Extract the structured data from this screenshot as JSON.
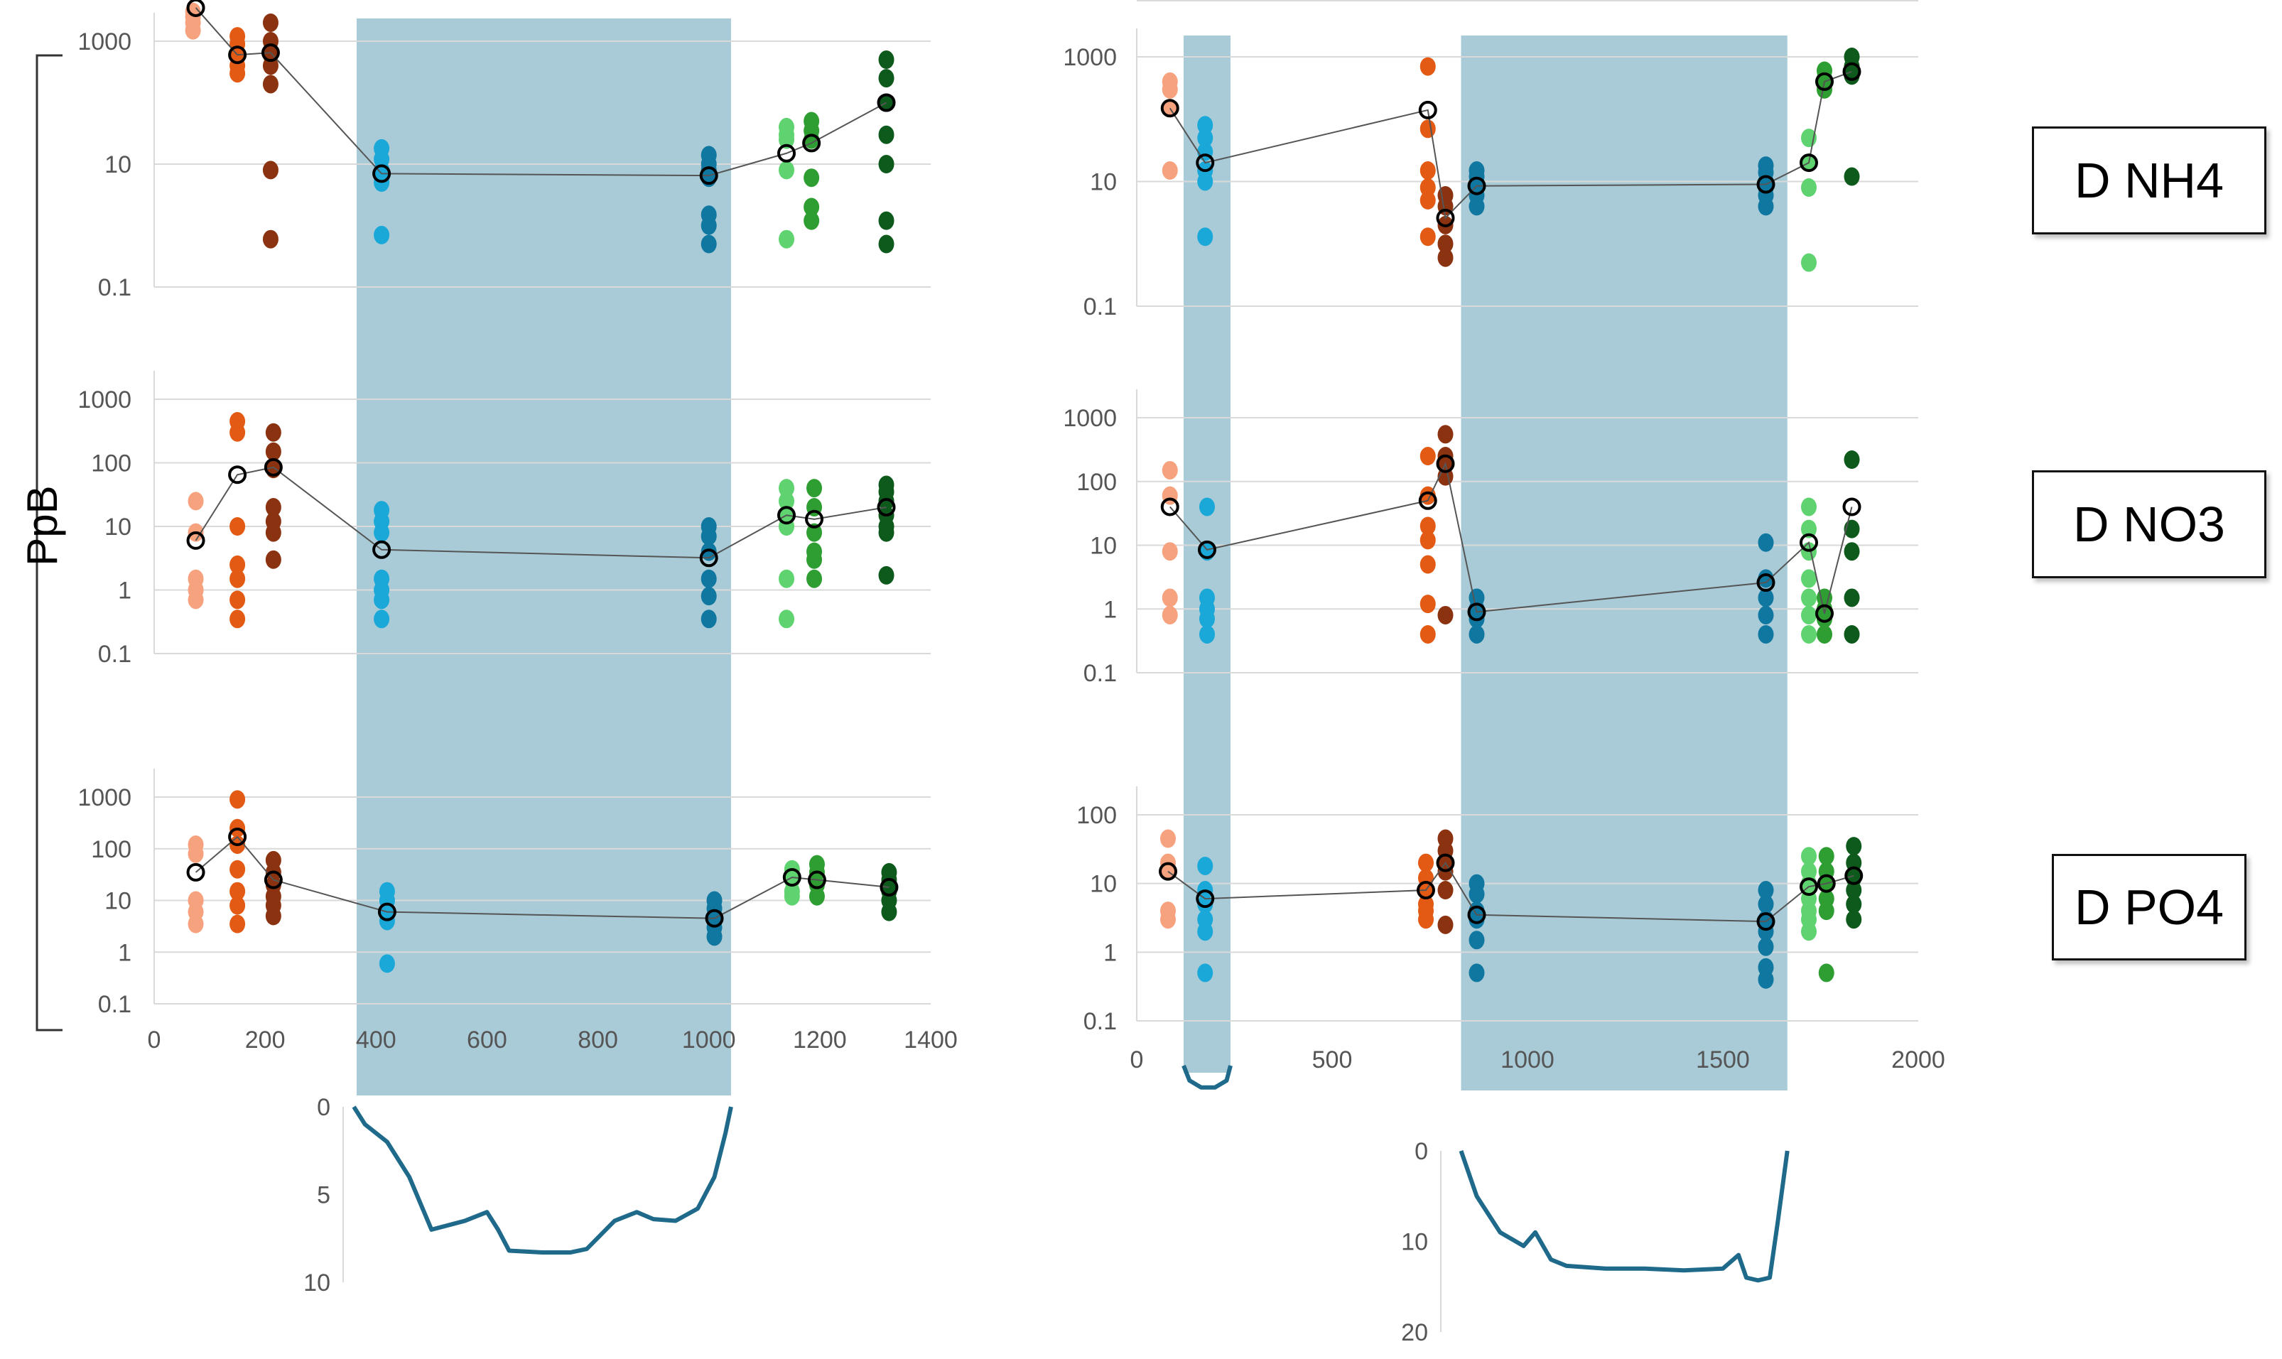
{
  "y_axis_label": "PpB",
  "panel_labels": [
    "D NH4",
    "D NO3",
    "D PO4"
  ],
  "colors": {
    "shade": "#a9cbd7",
    "profile": "#1f6a8a",
    "grid": "#d9d9d9",
    "mean_line": "#555555",
    "mean_marker": "#000000"
  },
  "chart_data": [
    {
      "type": "scatter",
      "panel": "left-top",
      "nutrient": "D NH4",
      "title": "",
      "xlabel": "",
      "ylabel": "PpB",
      "yscale": "log",
      "ylim": [
        0.1,
        5000
      ],
      "yticks": [
        "0.1",
        "10",
        "1000"
      ],
      "xlim": [
        0,
        1400
      ],
      "grid": true,
      "shaded_x": [
        [
          365,
          1040
        ]
      ],
      "points": [
        {
          "x": 70,
          "color": "#f7a27f",
          "y": [
            3000,
            2500,
            2000,
            1500
          ]
        },
        {
          "x": 150,
          "color": "#e25a13",
          "y": [
            1200,
            900,
            600,
            400,
            300
          ]
        },
        {
          "x": 210,
          "color": "#8b3311",
          "y": [
            2000,
            1000,
            600,
            400,
            200,
            8,
            0.6
          ]
        },
        {
          "x": 410,
          "color": "#1aa8d8",
          "y": [
            18,
            12,
            8,
            6,
            5,
            0.7
          ]
        },
        {
          "x": 1000,
          "color": "#1077a0",
          "y": [
            14,
            10,
            8,
            6,
            1.5,
            1,
            0.5
          ]
        },
        {
          "x": 1140,
          "color": "#5fd36f",
          "y": [
            40,
            30,
            25,
            8,
            0.6
          ]
        },
        {
          "x": 1185,
          "color": "#2e9e32",
          "y": [
            50,
            35,
            25,
            6,
            2,
            1.2
          ]
        },
        {
          "x": 1320,
          "color": "#0e5a1c",
          "y": [
            500,
            250,
            100,
            30,
            10,
            1.2,
            0.5
          ]
        }
      ],
      "means": [
        {
          "x": 75,
          "y": 3500
        },
        {
          "x": 150,
          "y": 600
        },
        {
          "x": 210,
          "y": 650
        },
        {
          "x": 410,
          "y": 7
        },
        {
          "x": 1000,
          "y": 6.5
        },
        {
          "x": 1140,
          "y": 15
        },
        {
          "x": 1185,
          "y": 22
        },
        {
          "x": 1320,
          "y": 100
        }
      ]
    },
    {
      "type": "scatter",
      "panel": "left-middle",
      "nutrient": "D NO3",
      "title": "",
      "xlabel": "",
      "ylabel": "PpB",
      "yscale": "log",
      "ylim": [
        0.1,
        1000
      ],
      "yticks": [
        "0.1",
        "1",
        "10",
        "100",
        "1000"
      ],
      "xlim": [
        0,
        1400
      ],
      "grid": true,
      "shaded_x": [
        [
          365,
          1040
        ]
      ],
      "points": [
        {
          "x": 75,
          "color": "#f7a27f",
          "y": [
            25,
            8,
            1.5,
            1,
            0.7
          ]
        },
        {
          "x": 150,
          "color": "#e25a13",
          "y": [
            450,
            300,
            10,
            2.5,
            1.5,
            0.7,
            0.35
          ]
        },
        {
          "x": 215,
          "color": "#8b3311",
          "y": [
            300,
            150,
            80,
            20,
            12,
            8,
            3
          ]
        },
        {
          "x": 410,
          "color": "#1aa8d8",
          "y": [
            18,
            12,
            8,
            1.5,
            1,
            0.7,
            0.35
          ]
        },
        {
          "x": 1000,
          "color": "#1077a0",
          "y": [
            10,
            7,
            4,
            1.5,
            0.8,
            0.35
          ]
        },
        {
          "x": 1140,
          "color": "#5fd36f",
          "y": [
            40,
            25,
            15,
            10,
            1.5,
            0.35
          ]
        },
        {
          "x": 1190,
          "color": "#2e9e32",
          "y": [
            40,
            20,
            8,
            4,
            3,
            1.5
          ]
        },
        {
          "x": 1320,
          "color": "#0e5a1c",
          "y": [
            45,
            35,
            25,
            15,
            10,
            8,
            1.7
          ]
        }
      ],
      "means": [
        {
          "x": 75,
          "y": 6
        },
        {
          "x": 150,
          "y": 65
        },
        {
          "x": 215,
          "y": 85
        },
        {
          "x": 410,
          "y": 4.3
        },
        {
          "x": 1000,
          "y": 3.2
        },
        {
          "x": 1140,
          "y": 15
        },
        {
          "x": 1190,
          "y": 13
        },
        {
          "x": 1320,
          "y": 20
        }
      ]
    },
    {
      "type": "scatter",
      "panel": "left-bottom",
      "nutrient": "D PO4",
      "title": "",
      "xlabel": "",
      "ylabel": "PpB",
      "yscale": "log",
      "ylim": [
        0.1,
        1000
      ],
      "yticks": [
        "0.1",
        "1",
        "10",
        "100",
        "1000"
      ],
      "xlim": [
        0,
        1400
      ],
      "xticks": [
        "0",
        "200",
        "400",
        "600",
        "800",
        "1000",
        "1200",
        "1400"
      ],
      "grid": true,
      "shaded_x": [
        [
          365,
          1040
        ]
      ],
      "points": [
        {
          "x": 75,
          "color": "#f7a27f",
          "y": [
            120,
            80,
            10,
            6,
            3.5
          ]
        },
        {
          "x": 150,
          "color": "#e25a13",
          "y": [
            900,
            250,
            120,
            40,
            15,
            8,
            3.5
          ]
        },
        {
          "x": 215,
          "color": "#8b3311",
          "y": [
            60,
            35,
            20,
            12,
            8,
            5
          ]
        },
        {
          "x": 420,
          "color": "#1aa8d8",
          "y": [
            15,
            10,
            6,
            4,
            0.6
          ]
        },
        {
          "x": 1010,
          "color": "#1077a0",
          "y": [
            10,
            7,
            5,
            3,
            2
          ]
        },
        {
          "x": 1150,
          "color": "#5fd36f",
          "y": [
            40,
            25,
            15,
            12
          ]
        },
        {
          "x": 1195,
          "color": "#2e9e32",
          "y": [
            50,
            35,
            20,
            12
          ]
        },
        {
          "x": 1325,
          "color": "#0e5a1c",
          "y": [
            35,
            25,
            15,
            10,
            6
          ]
        }
      ],
      "means": [
        {
          "x": 75,
          "y": 35
        },
        {
          "x": 150,
          "y": 170
        },
        {
          "x": 215,
          "y": 25
        },
        {
          "x": 420,
          "y": 6
        },
        {
          "x": 1010,
          "y": 4.5
        },
        {
          "x": 1150,
          "y": 28
        },
        {
          "x": 1195,
          "y": 25
        },
        {
          "x": 1325,
          "y": 18
        }
      ]
    },
    {
      "type": "scatter",
      "panel": "right-top",
      "nutrient": "D NH4",
      "title": "",
      "xlabel": "",
      "ylabel": "",
      "yscale": "log",
      "ylim": [
        0.1,
        5000
      ],
      "yticks": [
        "0.1",
        "10",
        "1000"
      ],
      "xlim": [
        0,
        2000
      ],
      "grid": true,
      "shaded_x": [
        [
          120,
          240
        ],
        [
          830,
          1665
        ]
      ],
      "points": [
        {
          "x": 85,
          "color": "#f7a27f",
          "y": [
            400,
            300,
            150,
            15
          ]
        },
        {
          "x": 175,
          "color": "#1aa8d8",
          "y": [
            80,
            50,
            30,
            15,
            10,
            1.3
          ]
        },
        {
          "x": 745,
          "color": "#e25a13",
          "y": [
            700,
            70,
            15,
            8,
            5,
            1.3
          ]
        },
        {
          "x": 790,
          "color": "#8b3311",
          "y": [
            6,
            4,
            2,
            1,
            0.6
          ]
        },
        {
          "x": 870,
          "color": "#1077a0",
          "y": [
            15,
            12,
            8,
            6,
            4
          ]
        },
        {
          "x": 1610,
          "color": "#1077a0",
          "y": [
            18,
            14,
            10,
            8,
            6,
            4
          ]
        },
        {
          "x": 1720,
          "color": "#5fd36f",
          "y": [
            50,
            20,
            8,
            0.5
          ]
        },
        {
          "x": 1760,
          "color": "#2e9e32",
          "y": [
            600,
            450,
            300
          ]
        },
        {
          "x": 1830,
          "color": "#0e5a1c",
          "y": [
            1000,
            700,
            500,
            12
          ]
        }
      ],
      "means": [
        {
          "x": 85,
          "y": 150
        },
        {
          "x": 175,
          "y": 20
        },
        {
          "x": 745,
          "y": 140
        },
        {
          "x": 790,
          "y": 2.6
        },
        {
          "x": 870,
          "y": 8.5
        },
        {
          "x": 1610,
          "y": 9
        },
        {
          "x": 1720,
          "y": 20
        },
        {
          "x": 1760,
          "y": 400
        },
        {
          "x": 1830,
          "y": 580
        }
      ]
    },
    {
      "type": "scatter",
      "panel": "right-middle",
      "nutrient": "D NO3",
      "title": "",
      "xlabel": "",
      "ylabel": "",
      "yscale": "log",
      "ylim": [
        0.1,
        1000
      ],
      "yticks": [
        "0.1",
        "1",
        "10",
        "100",
        "1000"
      ],
      "xlim": [
        0,
        2000
      ],
      "grid": true,
      "shaded_x": [
        [
          120,
          240
        ],
        [
          830,
          1665
        ]
      ],
      "points": [
        {
          "x": 85,
          "color": "#f7a27f",
          "y": [
            150,
            60,
            8,
            1.5,
            0.8
          ]
        },
        {
          "x": 180,
          "color": "#1aa8d8",
          "y": [
            40,
            8,
            1.5,
            1,
            0.7,
            0.4
          ]
        },
        {
          "x": 745,
          "color": "#e25a13",
          "y": [
            250,
            60,
            20,
            12,
            5,
            1.2,
            0.4
          ]
        },
        {
          "x": 790,
          "color": "#8b3311",
          "y": [
            550,
            250,
            180,
            120,
            0.8
          ]
        },
        {
          "x": 870,
          "color": "#1077a0",
          "y": [
            1.5,
            1,
            0.7,
            0.4
          ]
        },
        {
          "x": 1610,
          "color": "#1077a0",
          "y": [
            11,
            3,
            1.5,
            0.8,
            0.4
          ]
        },
        {
          "x": 1720,
          "color": "#5fd36f",
          "y": [
            40,
            18,
            8,
            3,
            1.5,
            0.8,
            0.4
          ]
        },
        {
          "x": 1760,
          "color": "#2e9e32",
          "y": [
            1.5,
            1,
            0.7,
            0.4
          ]
        },
        {
          "x": 1830,
          "color": "#0e5a1c",
          "y": [
            220,
            18,
            8,
            1.5,
            0.4
          ]
        }
      ],
      "means": [
        {
          "x": 85,
          "y": 40
        },
        {
          "x": 180,
          "y": 8.5
        },
        {
          "x": 745,
          "y": 50
        },
        {
          "x": 790,
          "y": 190
        },
        {
          "x": 870,
          "y": 0.9
        },
        {
          "x": 1610,
          "y": 2.6
        },
        {
          "x": 1720,
          "y": 11
        },
        {
          "x": 1760,
          "y": 0.85
        },
        {
          "x": 1830,
          "y": 40
        }
      ]
    },
    {
      "type": "scatter",
      "panel": "right-bottom",
      "nutrient": "D PO4",
      "title": "",
      "xlabel": "",
      "ylabel": "",
      "yscale": "log",
      "ylim": [
        0.1,
        100
      ],
      "yticks": [
        "0.1",
        "1",
        "10",
        "100"
      ],
      "xlim": [
        0,
        2000
      ],
      "xticks": [
        "0",
        "500",
        "1000",
        "1500",
        "2000"
      ],
      "grid": true,
      "shaded_x": [
        [
          120,
          240
        ],
        [
          830,
          1665
        ]
      ],
      "points": [
        {
          "x": 80,
          "color": "#f7a27f",
          "y": [
            45,
            20,
            15,
            4,
            3
          ]
        },
        {
          "x": 175,
          "color": "#1aa8d8",
          "y": [
            18,
            8,
            5,
            3,
            2,
            0.5
          ]
        },
        {
          "x": 740,
          "color": "#e25a13",
          "y": [
            20,
            12,
            8,
            5,
            4,
            3
          ]
        },
        {
          "x": 790,
          "color": "#8b3311",
          "y": [
            45,
            30,
            20,
            15,
            8,
            2.5
          ]
        },
        {
          "x": 870,
          "color": "#1077a0",
          "y": [
            10,
            7,
            4,
            3,
            1.5,
            0.5
          ]
        },
        {
          "x": 1610,
          "color": "#1077a0",
          "y": [
            8,
            5,
            3,
            2,
            1.2,
            0.6,
            0.4
          ]
        },
        {
          "x": 1720,
          "color": "#5fd36f",
          "y": [
            25,
            15,
            10,
            6,
            4,
            3,
            2
          ]
        },
        {
          "x": 1765,
          "color": "#2e9e32",
          "y": [
            25,
            15,
            10,
            6,
            4,
            0.5
          ]
        },
        {
          "x": 1835,
          "color": "#0e5a1c",
          "y": [
            35,
            20,
            12,
            8,
            5,
            3
          ]
        }
      ],
      "means": [
        {
          "x": 80,
          "y": 15
        },
        {
          "x": 175,
          "y": 6
        },
        {
          "x": 740,
          "y": 8
        },
        {
          "x": 790,
          "y": 20
        },
        {
          "x": 870,
          "y": 3.5
        },
        {
          "x": 1610,
          "y": 2.8
        },
        {
          "x": 1720,
          "y": 9
        },
        {
          "x": 1765,
          "y": 10
        },
        {
          "x": 1835,
          "y": 13
        }
      ]
    },
    {
      "type": "area",
      "panel": "left-depth-profile",
      "title": "",
      "xlabel": "",
      "ylabel": "",
      "xlim": [
        0,
        1400
      ],
      "ylim": [
        0,
        10
      ],
      "y_inverted": true,
      "yticks": [
        "0",
        "5",
        "10"
      ],
      "x": [
        360,
        380,
        420,
        460,
        500,
        560,
        600,
        620,
        640,
        700,
        750,
        780,
        830,
        870,
        900,
        940,
        980,
        1010,
        1030,
        1040
      ],
      "y": [
        0,
        1,
        2,
        4,
        7,
        6.5,
        6,
        7,
        8.2,
        8.3,
        8.3,
        8.1,
        6.5,
        6,
        6.4,
        6.5,
        5.8,
        4,
        1.5,
        0
      ]
    },
    {
      "type": "area",
      "panel": "right-depth-profile",
      "title": "",
      "xlabel": "",
      "ylabel": "",
      "xlim": [
        0,
        2000
      ],
      "ylim": [
        0,
        20
      ],
      "y_inverted": true,
      "yticks": [
        "0",
        "10",
        "20"
      ],
      "x": [
        830,
        870,
        930,
        990,
        1020,
        1060,
        1100,
        1200,
        1300,
        1400,
        1500,
        1540,
        1560,
        1590,
        1620,
        1640,
        1665
      ],
      "y": [
        0,
        5,
        9,
        10.5,
        9,
        12,
        12.7,
        13,
        13,
        13.2,
        13,
        11.5,
        14,
        14.3,
        14,
        8,
        0
      ]
    },
    {
      "type": "area",
      "panel": "right-narrow-profile",
      "title": "",
      "xlabel": "",
      "ylabel": "",
      "xlim": [
        0,
        2000
      ],
      "ylim": [
        0,
        10
      ],
      "y_inverted": true,
      "x": [
        120,
        135,
        165,
        200,
        230,
        240
      ],
      "y": [
        0,
        1.5,
        2.2,
        2.2,
        1.5,
        0
      ]
    }
  ]
}
